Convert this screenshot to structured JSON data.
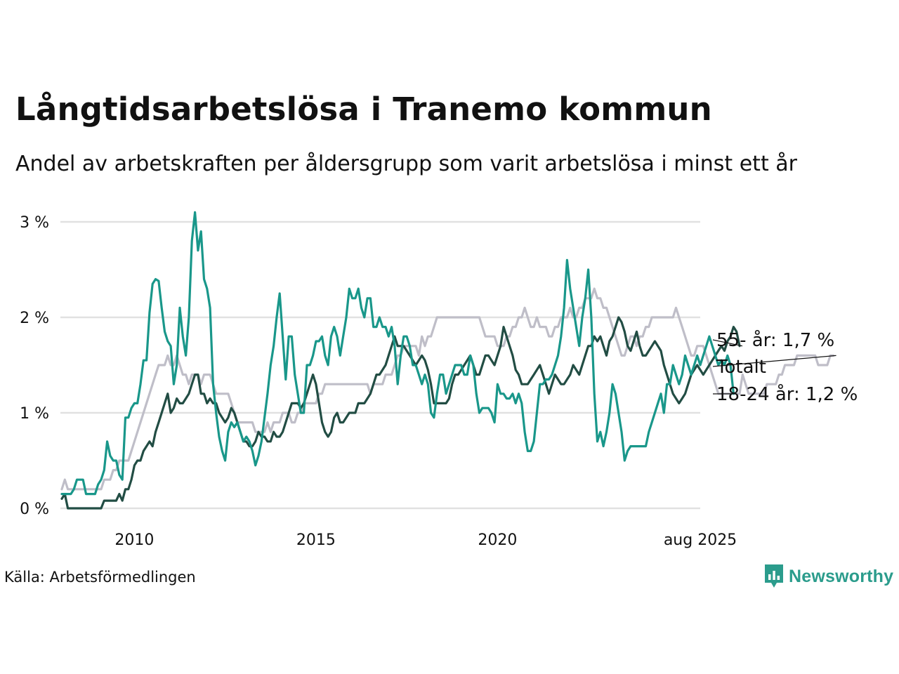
{
  "header": {
    "title": "Långtidsarbetslösa i Tranemo kommun",
    "subtitle": "Andel av arbetskraften per åldersgrupp som varit arbetslösa i minst ett år"
  },
  "footer": {
    "source": "Källa: Arbetsförmedlingen",
    "brand": "Newsworthy"
  },
  "colors": {
    "youth": "#19978a",
    "senior": "#224d44",
    "total": "#bfbec8",
    "grid": "#e1e1e1",
    "brand": "#2b9c8c"
  },
  "icons": {
    "brand_logo": "bar-chart-speech-icon"
  },
  "chart_data": {
    "type": "line",
    "x_start": "2008-01",
    "x_end": "2025-08",
    "x_step": "month",
    "xticks": [
      {
        "date": "2010-01",
        "label": "2010"
      },
      {
        "date": "2015-01",
        "label": "2015"
      },
      {
        "date": "2020-01",
        "label": "2020"
      },
      {
        "date": "2025-08",
        "label": "aug 2025"
      }
    ],
    "yticks": [
      {
        "value": 0,
        "label": "0 %"
      },
      {
        "value": 1,
        "label": "1 %"
      },
      {
        "value": 2,
        "label": "2 %"
      },
      {
        "value": 3,
        "label": "3 %"
      }
    ],
    "ylim": [
      0,
      3
    ],
    "grid": true,
    "legend": "end-labels",
    "series": [
      {
        "id": "total",
        "name": "Totalt",
        "end_label": "Totalt",
        "values_start": "2008-01",
        "values": [
          0.2,
          0.3,
          0.2,
          0.2,
          0.2,
          0.2,
          0.2,
          0.2,
          0.2,
          0.2,
          0.2,
          0.2,
          0.2,
          0.2,
          0.3,
          0.3,
          0.3,
          0.4,
          0.4,
          0.5,
          0.5,
          0.5,
          0.5,
          0.6,
          0.7,
          0.8,
          0.9,
          1.0,
          1.1,
          1.2,
          1.3,
          1.4,
          1.5,
          1.5,
          1.5,
          1.6,
          1.5,
          1.5,
          1.6,
          1.5,
          1.4,
          1.4,
          1.3,
          1.4,
          1.4,
          1.4,
          1.3,
          1.4,
          1.4,
          1.4,
          1.3,
          1.2,
          1.2,
          1.2,
          1.2,
          1.2,
          1.1,
          1.0,
          0.9,
          0.9,
          0.9,
          0.9,
          0.9,
          0.9,
          0.8,
          0.8,
          0.8,
          0.8,
          0.9,
          0.8,
          0.9,
          0.9,
          0.9,
          1.0,
          1.0,
          1.0,
          0.9,
          0.9,
          1.0,
          1.0,
          1.1,
          1.1,
          1.1,
          1.1,
          1.1,
          1.2,
          1.2,
          1.3,
          1.3,
          1.3,
          1.3,
          1.3,
          1.3,
          1.3,
          1.3,
          1.3,
          1.3,
          1.3,
          1.3,
          1.3,
          1.3,
          1.3,
          1.2,
          1.3,
          1.3,
          1.3,
          1.3,
          1.4,
          1.4,
          1.4,
          1.5,
          1.6,
          1.6,
          1.7,
          1.7,
          1.7,
          1.7,
          1.7,
          1.6,
          1.8,
          1.7,
          1.8,
          1.8,
          1.9,
          2.0,
          2.0,
          2.0,
          2.0,
          2.0,
          2.0,
          2.0,
          2.0,
          2.0,
          2.0,
          2.0,
          2.0,
          2.0,
          2.0,
          2.0,
          1.9,
          1.8,
          1.8,
          1.8,
          1.8,
          1.7,
          1.7,
          1.7,
          1.8,
          1.8,
          1.9,
          1.9,
          2.0,
          2.0,
          2.1,
          2.0,
          1.9,
          1.9,
          2.0,
          1.9,
          1.9,
          1.9,
          1.8,
          1.8,
          1.9,
          1.9,
          2.0,
          2.0,
          2.0,
          2.1,
          2.0,
          2.0,
          2.1,
          2.1,
          2.2,
          2.2,
          2.2,
          2.3,
          2.2,
          2.2,
          2.1,
          2.1,
          2.0,
          1.9,
          1.8,
          1.7,
          1.6,
          1.6,
          1.7,
          1.8,
          1.8,
          1.7,
          1.8,
          1.8,
          1.9,
          1.9,
          2.0,
          2.0,
          2.0,
          2.0,
          2.0,
          2.0,
          2.0,
          2.0,
          2.1,
          2.0,
          1.9,
          1.8,
          1.7,
          1.6,
          1.6,
          1.7,
          1.7,
          1.7,
          1.6,
          1.5,
          1.4,
          1.3,
          1.2,
          1.2,
          1.2,
          1.2,
          1.2,
          1.2,
          1.2,
          1.2,
          1.4,
          1.3,
          1.2,
          1.2,
          1.2,
          1.2,
          1.2,
          1.2,
          1.3,
          1.3,
          1.3,
          1.3,
          1.4,
          1.4,
          1.5,
          1.5,
          1.5,
          1.5,
          1.6,
          1.6,
          1.6,
          1.6,
          1.6,
          1.6,
          1.6,
          1.5,
          1.5,
          1.5,
          1.5,
          1.6,
          1.6
        ]
      },
      {
        "id": "senior",
        "name": "55- år",
        "end_label": "55- år: 1,7 %",
        "values_start": "2008-01",
        "values": [
          0.1,
          0.15,
          0.0,
          0.0,
          0.0,
          0.0,
          0.0,
          0.0,
          0.0,
          0.0,
          0.0,
          0.0,
          0.0,
          0.0,
          0.08,
          0.08,
          0.08,
          0.08,
          0.08,
          0.15,
          0.08,
          0.2,
          0.2,
          0.3,
          0.45,
          0.5,
          0.5,
          0.6,
          0.65,
          0.7,
          0.65,
          0.8,
          0.9,
          1.0,
          1.1,
          1.2,
          1.0,
          1.05,
          1.15,
          1.1,
          1.1,
          1.15,
          1.2,
          1.3,
          1.4,
          1.4,
          1.2,
          1.2,
          1.1,
          1.15,
          1.1,
          1.1,
          1.0,
          0.95,
          0.9,
          0.95,
          1.05,
          1.0,
          0.9,
          0.8,
          0.7,
          0.7,
          0.65,
          0.65,
          0.7,
          0.8,
          0.75,
          0.75,
          0.7,
          0.7,
          0.8,
          0.75,
          0.75,
          0.8,
          0.9,
          1.0,
          1.1,
          1.1,
          1.1,
          1.05,
          1.1,
          1.2,
          1.3,
          1.4,
          1.3,
          1.1,
          0.9,
          0.8,
          0.75,
          0.8,
          0.95,
          1.0,
          0.9,
          0.9,
          0.95,
          1.0,
          1.0,
          1.0,
          1.1,
          1.1,
          1.1,
          1.15,
          1.2,
          1.3,
          1.4,
          1.4,
          1.45,
          1.5,
          1.6,
          1.7,
          1.8,
          1.7,
          1.7,
          1.7,
          1.65,
          1.6,
          1.55,
          1.5,
          1.55,
          1.6,
          1.55,
          1.45,
          1.3,
          1.1,
          1.1,
          1.1,
          1.1,
          1.1,
          1.15,
          1.3,
          1.4,
          1.4,
          1.45,
          1.5,
          1.55,
          1.6,
          1.5,
          1.4,
          1.4,
          1.5,
          1.6,
          1.6,
          1.55,
          1.5,
          1.6,
          1.7,
          1.9,
          1.8,
          1.7,
          1.6,
          1.45,
          1.4,
          1.3,
          1.3,
          1.3,
          1.35,
          1.4,
          1.45,
          1.5,
          1.4,
          1.3,
          1.2,
          1.3,
          1.4,
          1.35,
          1.3,
          1.3,
          1.35,
          1.4,
          1.5,
          1.45,
          1.4,
          1.5,
          1.6,
          1.7,
          1.7,
          1.8,
          1.75,
          1.8,
          1.7,
          1.6,
          1.75,
          1.8,
          1.9,
          2.0,
          1.95,
          1.85,
          1.7,
          1.65,
          1.75,
          1.85,
          1.7,
          1.6,
          1.6,
          1.65,
          1.7,
          1.75,
          1.7,
          1.65,
          1.5,
          1.4,
          1.3,
          1.2,
          1.15,
          1.1,
          1.15,
          1.2,
          1.3,
          1.4,
          1.45,
          1.5,
          1.45,
          1.4,
          1.45,
          1.5,
          1.55,
          1.6,
          1.65,
          1.7,
          1.65,
          1.75,
          1.8,
          1.9,
          1.85,
          1.7
        ]
      },
      {
        "id": "youth",
        "name": "18-24 år",
        "end_label": "18-24 år: 1,2 %",
        "values_start": "2008-01",
        "values": [
          0.15,
          0.15,
          0.15,
          0.15,
          0.2,
          0.3,
          0.3,
          0.3,
          0.15,
          0.15,
          0.15,
          0.15,
          0.25,
          0.3,
          0.4,
          0.7,
          0.55,
          0.5,
          0.5,
          0.35,
          0.3,
          0.95,
          0.95,
          1.05,
          1.1,
          1.1,
          1.3,
          1.55,
          1.55,
          2.05,
          2.35,
          2.4,
          2.38,
          2.1,
          1.85,
          1.75,
          1.7,
          1.3,
          1.5,
          2.1,
          1.8,
          1.6,
          2.0,
          2.8,
          3.1,
          2.7,
          2.9,
          2.4,
          2.3,
          2.1,
          1.3,
          1.0,
          0.75,
          0.6,
          0.5,
          0.8,
          0.9,
          0.85,
          0.9,
          0.8,
          0.7,
          0.75,
          0.7,
          0.6,
          0.45,
          0.55,
          0.7,
          0.95,
          1.2,
          1.5,
          1.7,
          2.0,
          2.25,
          1.8,
          1.35,
          1.8,
          1.8,
          1.4,
          1.2,
          1.0,
          1.0,
          1.5,
          1.5,
          1.6,
          1.75,
          1.75,
          1.8,
          1.6,
          1.5,
          1.8,
          1.9,
          1.8,
          1.6,
          1.8,
          2.0,
          2.3,
          2.2,
          2.2,
          2.3,
          2.1,
          2.0,
          2.2,
          2.2,
          1.9,
          1.9,
          2.0,
          1.9,
          1.9,
          1.8,
          1.9,
          1.7,
          1.3,
          1.6,
          1.8,
          1.8,
          1.7,
          1.5,
          1.5,
          1.4,
          1.3,
          1.4,
          1.3,
          1.0,
          0.95,
          1.2,
          1.4,
          1.4,
          1.2,
          1.3,
          1.4,
          1.5,
          1.5,
          1.5,
          1.4,
          1.4,
          1.6,
          1.5,
          1.2,
          1.0,
          1.05,
          1.05,
          1.05,
          1.0,
          0.9,
          1.3,
          1.2,
          1.2,
          1.15,
          1.15,
          1.2,
          1.1,
          1.2,
          1.1,
          0.8,
          0.6,
          0.6,
          0.7,
          1.0,
          1.3,
          1.3,
          1.35,
          1.35,
          1.4,
          1.5,
          1.6,
          1.8,
          2.1,
          2.6,
          2.3,
          2.1,
          1.9,
          1.7,
          2.0,
          2.2,
          2.5,
          2.0,
          1.2,
          0.7,
          0.8,
          0.65,
          0.8,
          1.0,
          1.3,
          1.2,
          1.0,
          0.8,
          0.5,
          0.6,
          0.65,
          0.65,
          0.65,
          0.65,
          0.65,
          0.65,
          0.8,
          0.9,
          1.0,
          1.1,
          1.2,
          1.0,
          1.3,
          1.3,
          1.5,
          1.4,
          1.3,
          1.4,
          1.6,
          1.5,
          1.4,
          1.5,
          1.6,
          1.5,
          1.6,
          1.7,
          1.8,
          1.7,
          1.6,
          1.5,
          1.55,
          1.5,
          1.6,
          1.5,
          1.2
        ]
      }
    ]
  }
}
